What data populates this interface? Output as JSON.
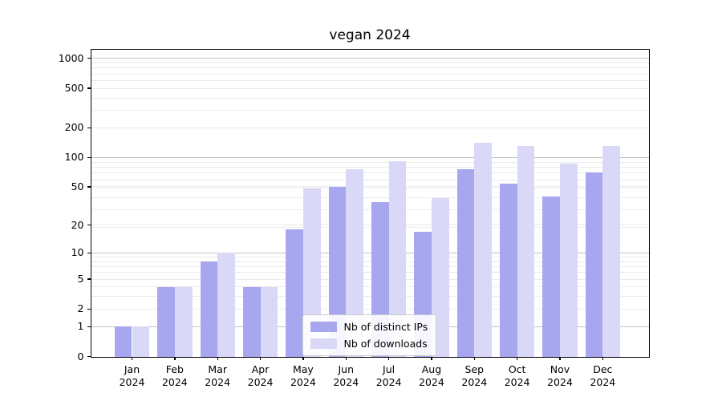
{
  "chart_data": {
    "type": "bar",
    "title": "vegan 2024",
    "months": [
      "Jan",
      "Feb",
      "Mar",
      "Apr",
      "May",
      "Jun",
      "Jul",
      "Aug",
      "Sep",
      "Oct",
      "Nov",
      "Dec"
    ],
    "year": "2024",
    "series": [
      {
        "name": "Nb of distinct IPs",
        "color": "#a7a7f0",
        "values": [
          1,
          4,
          8,
          4,
          18,
          50,
          35,
          17,
          76,
          54,
          40,
          70
        ]
      },
      {
        "name": "Nb of downloads",
        "color": "#d9d9f7",
        "values": [
          1,
          4,
          10,
          4,
          48,
          75,
          92,
          38,
          140,
          130,
          87,
          130
        ]
      }
    ],
    "y_scale": "log1p",
    "y_ticks": [
      0,
      1,
      2,
      5,
      10,
      20,
      50,
      100,
      200,
      500,
      1000
    ],
    "ylim": [
      0,
      1233
    ],
    "grid": true,
    "legend_position": "lower center",
    "colors": {
      "grid_major": "#c0c0c0",
      "grid_minor": "#ebebeb",
      "axis": "#000000",
      "background": "#ffffff"
    }
  }
}
